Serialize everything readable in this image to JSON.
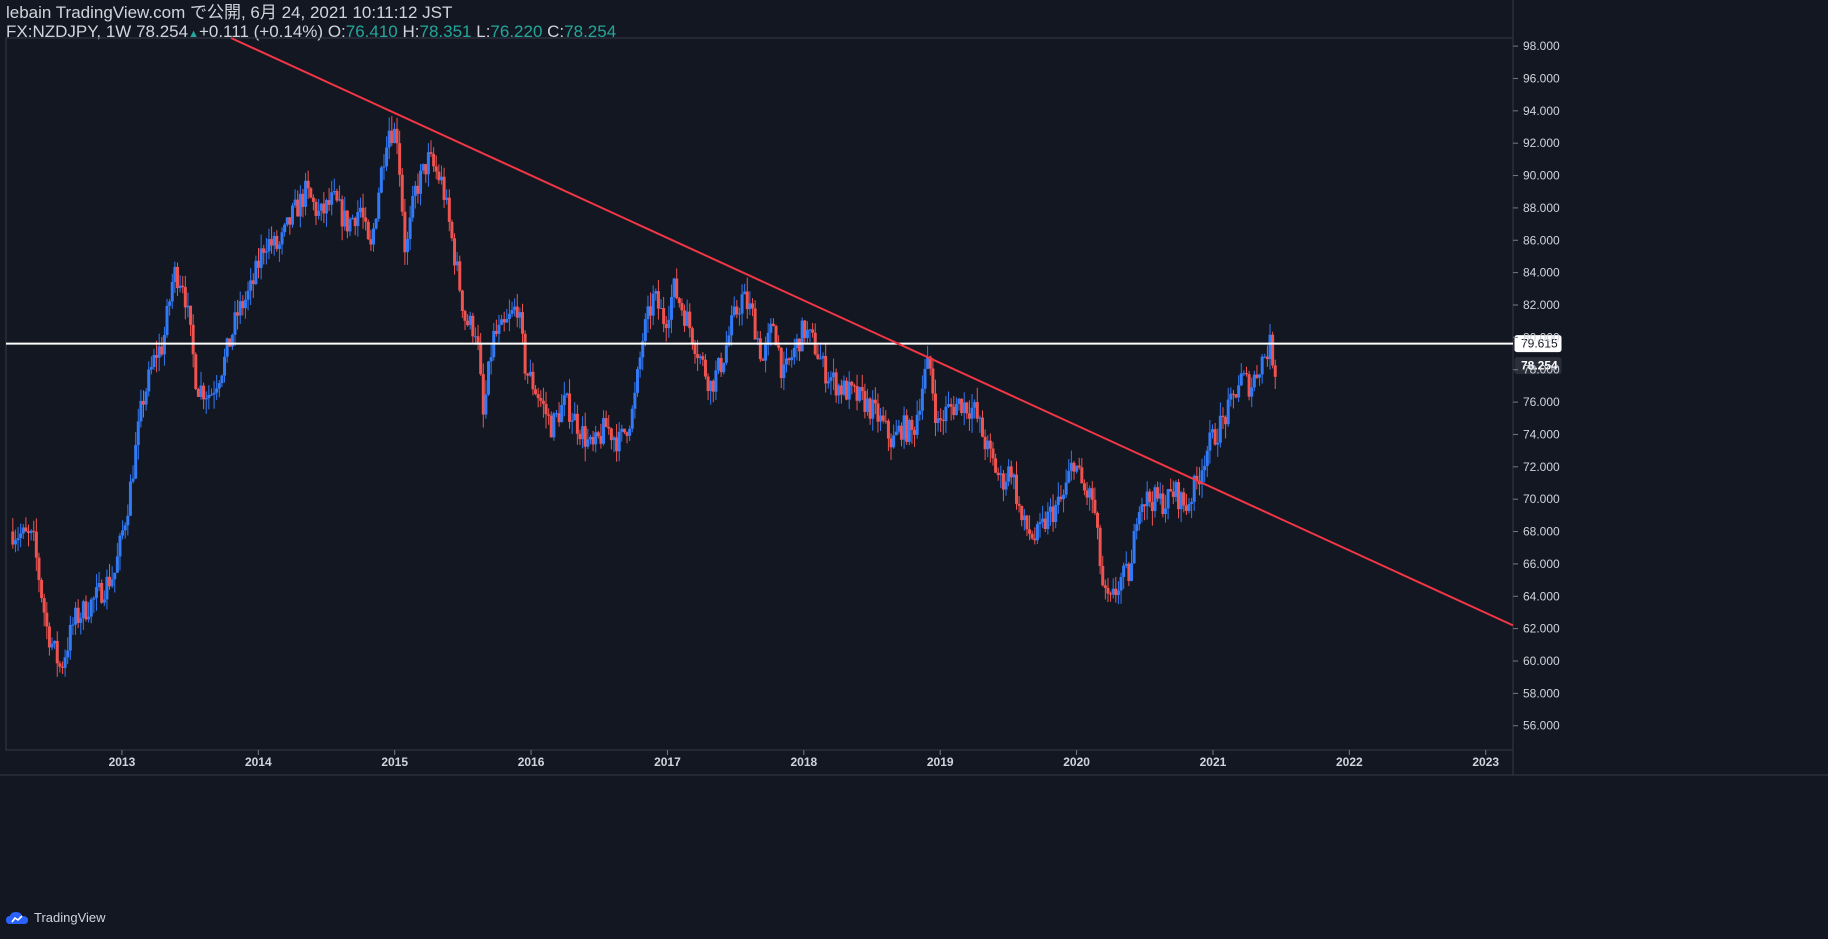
{
  "header": {
    "author_line": "lebain TradingView.com で公開, 6月 24, 2021 10:11:12 JST",
    "symbol": "FX:NZDJPY, 1W",
    "last": "78.254",
    "change_arrow": "▲",
    "change": "+0.111 (+0.14%)",
    "o_label": "O:",
    "o_value": "76.410",
    "h_label": "H:",
    "h_value": "78.351",
    "l_label": "L:",
    "l_value": "76.220",
    "c_label": "C:",
    "c_value": "78.254"
  },
  "footer": {
    "brand": "TradingView"
  },
  "colors": {
    "background": "#131722",
    "up": "#2962ff",
    "up_alt": "#3179f5",
    "down": "#ef5350",
    "trendline": "#f23645",
    "hline": "#ffffff",
    "axis_text": "#d1d4dc"
  },
  "chart_data": {
    "type": "candlestick",
    "symbol": "FX:NZDJPY",
    "interval": "1W",
    "ylim": [
      54.5,
      98.5
    ],
    "y_ticks": [
      "56.000",
      "58.000",
      "60.000",
      "62.000",
      "64.000",
      "66.000",
      "68.000",
      "70.000",
      "72.000",
      "74.000",
      "76.000",
      "78.000",
      "80.000",
      "82.000",
      "84.000",
      "86.000",
      "88.000",
      "90.000",
      "92.000",
      "94.000",
      "96.000",
      "98.000"
    ],
    "x_ticks": [
      "2013",
      "2014",
      "2015",
      "2016",
      "2017",
      "2018",
      "2019",
      "2020",
      "2021",
      "2022",
      "2023"
    ],
    "xlim": [
      2012.15,
      2023.2
    ],
    "price_labels": [
      {
        "label": "79.615",
        "value": 79.615,
        "style": "white"
      },
      {
        "label": "78.254",
        "value": 78.254,
        "style": "dark"
      }
    ],
    "horizontal_line": 79.615,
    "trendline": {
      "p1": [
        2013.8,
        98.5
      ],
      "p2": [
        2023.2,
        62.2
      ]
    },
    "price_path": [
      [
        2012.2,
        68.0
      ],
      [
        2012.35,
        67.5
      ],
      [
        2012.45,
        62.0
      ],
      [
        2012.55,
        59.5
      ],
      [
        2012.65,
        62.5
      ],
      [
        2012.8,
        63.8
      ],
      [
        2012.95,
        65.5
      ],
      [
        2013.05,
        70.0
      ],
      [
        2013.15,
        76.0
      ],
      [
        2013.25,
        79.0
      ],
      [
        2013.3,
        79.5
      ],
      [
        2013.38,
        84.0
      ],
      [
        2013.45,
        83.5
      ],
      [
        2013.55,
        77.0
      ],
      [
        2013.65,
        76.5
      ],
      [
        2013.75,
        78.5
      ],
      [
        2013.85,
        81.5
      ],
      [
        2013.95,
        83.0
      ],
      [
        2014.05,
        86.0
      ],
      [
        2014.15,
        85.5
      ],
      [
        2014.25,
        87.5
      ],
      [
        2014.35,
        89.0
      ],
      [
        2014.45,
        87.5
      ],
      [
        2014.55,
        88.5
      ],
      [
        2014.65,
        87.0
      ],
      [
        2014.75,
        88.0
      ],
      [
        2014.82,
        85.0
      ],
      [
        2014.88,
        89.0
      ],
      [
        2014.95,
        93.0
      ],
      [
        2015.02,
        92.5
      ],
      [
        2015.08,
        85.0
      ],
      [
        2015.15,
        89.0
      ],
      [
        2015.25,
        91.0
      ],
      [
        2015.35,
        89.5
      ],
      [
        2015.45,
        84.5
      ],
      [
        2015.52,
        81.0
      ],
      [
        2015.6,
        80.5
      ],
      [
        2015.65,
        75.0
      ],
      [
        2015.72,
        80.0
      ],
      [
        2015.8,
        80.5
      ],
      [
        2015.9,
        82.0
      ],
      [
        2015.96,
        78.0
      ],
      [
        2016.05,
        76.5
      ],
      [
        2016.15,
        74.5
      ],
      [
        2016.25,
        76.0
      ],
      [
        2016.35,
        74.5
      ],
      [
        2016.45,
        73.0
      ],
      [
        2016.55,
        74.5
      ],
      [
        2016.65,
        73.5
      ],
      [
        2016.75,
        75.5
      ],
      [
        2016.82,
        80.0
      ],
      [
        2016.9,
        82.5
      ],
      [
        2016.98,
        81.0
      ],
      [
        2017.05,
        83.0
      ],
      [
        2017.15,
        81.0
      ],
      [
        2017.25,
        78.5
      ],
      [
        2017.32,
        77.0
      ],
      [
        2017.4,
        78.5
      ],
      [
        2017.48,
        81.0
      ],
      [
        2017.55,
        82.5
      ],
      [
        2017.62,
        81.5
      ],
      [
        2017.7,
        78.5
      ],
      [
        2017.78,
        81.0
      ],
      [
        2017.85,
        77.5
      ],
      [
        2017.92,
        79.0
      ],
      [
        2018.0,
        80.5
      ],
      [
        2018.08,
        79.5
      ],
      [
        2018.15,
        78.0
      ],
      [
        2018.25,
        77.0
      ],
      [
        2018.35,
        76.5
      ],
      [
        2018.45,
        76.0
      ],
      [
        2018.55,
        75.0
      ],
      [
        2018.65,
        73.5
      ],
      [
        2018.72,
        74.5
      ],
      [
        2018.8,
        74.0
      ],
      [
        2018.88,
        77.5
      ],
      [
        2018.92,
        78.5
      ],
      [
        2018.98,
        74.5
      ],
      [
        2019.05,
        75.5
      ],
      [
        2019.15,
        76.0
      ],
      [
        2019.25,
        75.5
      ],
      [
        2019.35,
        73.0
      ],
      [
        2019.45,
        71.0
      ],
      [
        2019.52,
        72.0
      ],
      [
        2019.6,
        68.5
      ],
      [
        2019.7,
        67.5
      ],
      [
        2019.8,
        69.0
      ],
      [
        2019.9,
        70.0
      ],
      [
        2019.98,
        72.5
      ],
      [
        2020.05,
        70.5
      ],
      [
        2020.12,
        70.0
      ],
      [
        2020.2,
        64.0
      ],
      [
        2020.25,
        63.5
      ],
      [
        2020.32,
        65.0
      ],
      [
        2020.4,
        65.5
      ],
      [
        2020.45,
        70.0
      ],
      [
        2020.55,
        70.0
      ],
      [
        2020.65,
        69.8
      ],
      [
        2020.72,
        70.5
      ],
      [
        2020.8,
        69.5
      ],
      [
        2020.88,
        71.0
      ],
      [
        2020.95,
        73.0
      ],
      [
        2021.05,
        74.5
      ],
      [
        2021.12,
        75.5
      ],
      [
        2021.2,
        77.5
      ],
      [
        2021.28,
        77.0
      ],
      [
        2021.35,
        78.5
      ],
      [
        2021.42,
        79.5
      ],
      [
        2021.47,
        77.5
      ]
    ]
  }
}
